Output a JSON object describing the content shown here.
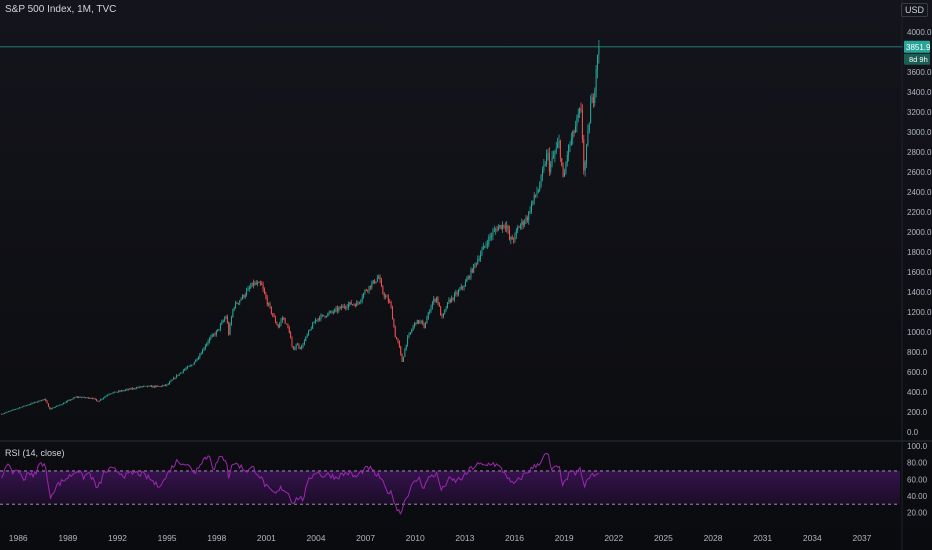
{
  "header": {
    "symbol": "S&P 500 Index, 1M, TVC",
    "currency": "USD"
  },
  "last_price": {
    "label": "3851.9",
    "value": 3851.9,
    "countdown": "8d 9h",
    "color": "#26a69a"
  },
  "colors": {
    "up": "#26a69a",
    "down": "#ef5350",
    "rsi": "#9c27b0",
    "rsi_band": "#7b1fa2",
    "rsi_bound": "#b0a0c8"
  },
  "chart_data": [
    {
      "type": "candlestick",
      "title": "S&P 500 Index, 1M, TVC",
      "x_ticks": [
        "1986",
        "1989",
        "1992",
        "1995",
        "1998",
        "2001",
        "2004",
        "2007",
        "2010",
        "2013",
        "2016",
        "2019",
        "2022",
        "2025",
        "2028",
        "2031",
        "2034",
        "2037"
      ],
      "y_ticks": [
        "0.0",
        "200.0",
        "400.0",
        "600.0",
        "800.0",
        "1000.0",
        "1200.0",
        "1400.0",
        "1600.0",
        "1800.0",
        "2000.0",
        "2200.0",
        "2400.0",
        "2600.0",
        "2800.0",
        "3000.0",
        "3200.0",
        "3400.0",
        "3600.0",
        "4000.0"
      ],
      "ylim": [
        -60,
        4100
      ],
      "xlim": [
        1984.9,
        2039.3
      ],
      "grid": false,
      "price_path": [
        [
          1985.0,
          180
        ],
        [
          1986.0,
          240
        ],
        [
          1987.6,
          330
        ],
        [
          1987.9,
          230
        ],
        [
          1988.5,
          270
        ],
        [
          1989.5,
          350
        ],
        [
          1990.5,
          340
        ],
        [
          1990.8,
          305
        ],
        [
          1991.5,
          385
        ],
        [
          1992.5,
          420
        ],
        [
          1993.5,
          455
        ],
        [
          1994.5,
          455
        ],
        [
          1995.0,
          470
        ],
        [
          1995.5,
          550
        ],
        [
          1996.0,
          620
        ],
        [
          1996.5,
          670
        ],
        [
          1997.0,
          780
        ],
        [
          1997.5,
          920
        ],
        [
          1998.0,
          1000
        ],
        [
          1998.6,
          1170
        ],
        [
          1998.7,
          960
        ],
        [
          1999.0,
          1250
        ],
        [
          1999.6,
          1360
        ],
        [
          2000.2,
          1480
        ],
        [
          2000.7,
          1470
        ],
        [
          2001.0,
          1320
        ],
        [
          2001.3,
          1200
        ],
        [
          2001.7,
          1050
        ],
        [
          2002.0,
          1150
        ],
        [
          2002.4,
          1000
        ],
        [
          2002.6,
          800
        ],
        [
          2002.8,
          880
        ],
        [
          2003.1,
          840
        ],
        [
          2003.5,
          980
        ],
        [
          2004.0,
          1130
        ],
        [
          2005.0,
          1200
        ],
        [
          2006.0,
          1280
        ],
        [
          2006.5,
          1280
        ],
        [
          2007.0,
          1420
        ],
        [
          2007.5,
          1500
        ],
        [
          2007.8,
          1550
        ],
        [
          2008.0,
          1400
        ],
        [
          2008.5,
          1280
        ],
        [
          2008.8,
          950
        ],
        [
          2009.0,
          880
        ],
        [
          2009.2,
          700
        ],
        [
          2009.5,
          920
        ],
        [
          2010.0,
          1100
        ],
        [
          2010.4,
          1100
        ],
        [
          2010.5,
          1030
        ],
        [
          2011.0,
          1290
        ],
        [
          2011.3,
          1350
        ],
        [
          2011.6,
          1130
        ],
        [
          2012.0,
          1300
        ],
        [
          2012.5,
          1380
        ],
        [
          2013.0,
          1480
        ],
        [
          2013.5,
          1640
        ],
        [
          2014.0,
          1800
        ],
        [
          2014.5,
          1950
        ],
        [
          2015.0,
          2050
        ],
        [
          2015.5,
          2080
        ],
        [
          2015.7,
          1920
        ],
        [
          2016.0,
          1940
        ],
        [
          2016.2,
          2040
        ],
        [
          2016.8,
          2150
        ],
        [
          2017.0,
          2270
        ],
        [
          2017.5,
          2450
        ],
        [
          2018.0,
          2800
        ],
        [
          2018.1,
          2640
        ],
        [
          2018.7,
          2900
        ],
        [
          2018.95,
          2500
        ],
        [
          2019.2,
          2800
        ],
        [
          2019.5,
          2950
        ],
        [
          2020.0,
          3230
        ],
        [
          2020.1,
          2950
        ],
        [
          2020.2,
          2580
        ],
        [
          2020.4,
          2900
        ],
        [
          2020.6,
          3270
        ],
        [
          2020.8,
          3360
        ],
        [
          2021.0,
          3800
        ],
        [
          2021.1,
          3851.9
        ]
      ],
      "candle_count": 435
    },
    {
      "type": "line",
      "title": "RSI (14, close)",
      "y_ticks": [
        "100.0",
        "80.00",
        "60.00",
        "40.00",
        "20.00"
      ],
      "ylim": [
        5,
        100
      ],
      "bands": [
        30,
        70
      ],
      "rsi_path": [
        [
          1985.0,
          62
        ],
        [
          1985.3,
          80
        ],
        [
          1985.6,
          68
        ],
        [
          1986.0,
          72
        ],
        [
          1986.3,
          58
        ],
        [
          1986.6,
          70
        ],
        [
          1986.9,
          62
        ],
        [
          1987.3,
          78
        ],
        [
          1987.6,
          80
        ],
        [
          1987.8,
          55
        ],
        [
          1987.9,
          38
        ],
        [
          1988.3,
          52
        ],
        [
          1988.7,
          58
        ],
        [
          1989.2,
          65
        ],
        [
          1989.6,
          72
        ],
        [
          1989.9,
          62
        ],
        [
          1990.3,
          68
        ],
        [
          1990.6,
          56
        ],
        [
          1990.8,
          48
        ],
        [
          1991.2,
          68
        ],
        [
          1991.6,
          72
        ],
        [
          1992.0,
          70
        ],
        [
          1992.5,
          64
        ],
        [
          1993.0,
          68
        ],
        [
          1993.5,
          66
        ],
        [
          1994.0,
          60
        ],
        [
          1994.4,
          52
        ],
        [
          1994.8,
          58
        ],
        [
          1995.2,
          72
        ],
        [
          1995.6,
          82
        ],
        [
          1996.0,
          80
        ],
        [
          1996.4,
          74
        ],
        [
          1996.7,
          68
        ],
        [
          1997.0,
          80
        ],
        [
          1997.3,
          86
        ],
        [
          1997.6,
          88
        ],
        [
          1997.8,
          72
        ],
        [
          1998.2,
          86
        ],
        [
          1998.6,
          84
        ],
        [
          1998.7,
          62
        ],
        [
          1999.0,
          80
        ],
        [
          1999.4,
          76
        ],
        [
          1999.8,
          70
        ],
        [
          2000.2,
          74
        ],
        [
          2000.6,
          64
        ],
        [
          2000.9,
          54
        ],
        [
          2001.2,
          46
        ],
        [
          2001.6,
          42
        ],
        [
          2001.9,
          50
        ],
        [
          2002.3,
          44
        ],
        [
          2002.6,
          32
        ],
        [
          2002.9,
          38
        ],
        [
          2003.2,
          36
        ],
        [
          2003.6,
          60
        ],
        [
          2004.0,
          70
        ],
        [
          2004.4,
          64
        ],
        [
          2004.8,
          66
        ],
        [
          2005.2,
          62
        ],
        [
          2005.6,
          66
        ],
        [
          2006.0,
          68
        ],
        [
          2006.4,
          62
        ],
        [
          2006.8,
          70
        ],
        [
          2007.2,
          74
        ],
        [
          2007.6,
          66
        ],
        [
          2007.9,
          62
        ],
        [
          2008.2,
          48
        ],
        [
          2008.6,
          42
        ],
        [
          2008.9,
          24
        ],
        [
          2009.1,
          20
        ],
        [
          2009.4,
          36
        ],
        [
          2009.8,
          52
        ],
        [
          2010.2,
          62
        ],
        [
          2010.5,
          50
        ],
        [
          2010.9,
          64
        ],
        [
          2011.3,
          66
        ],
        [
          2011.6,
          46
        ],
        [
          2012.0,
          60
        ],
        [
          2012.4,
          58
        ],
        [
          2012.9,
          62
        ],
        [
          2013.3,
          72
        ],
        [
          2013.8,
          78
        ],
        [
          2014.2,
          76
        ],
        [
          2014.6,
          80
        ],
        [
          2015.0,
          76
        ],
        [
          2015.5,
          66
        ],
        [
          2015.8,
          54
        ],
        [
          2016.1,
          56
        ],
        [
          2016.6,
          66
        ],
        [
          2017.0,
          72
        ],
        [
          2017.5,
          80
        ],
        [
          2018.0,
          92
        ],
        [
          2018.2,
          72
        ],
        [
          2018.7,
          74
        ],
        [
          2018.95,
          52
        ],
        [
          2019.3,
          66
        ],
        [
          2019.7,
          68
        ],
        [
          2020.0,
          72
        ],
        [
          2020.2,
          48
        ],
        [
          2020.4,
          60
        ],
        [
          2020.7,
          66
        ],
        [
          2020.9,
          62
        ],
        [
          2021.1,
          70
        ]
      ]
    }
  ]
}
